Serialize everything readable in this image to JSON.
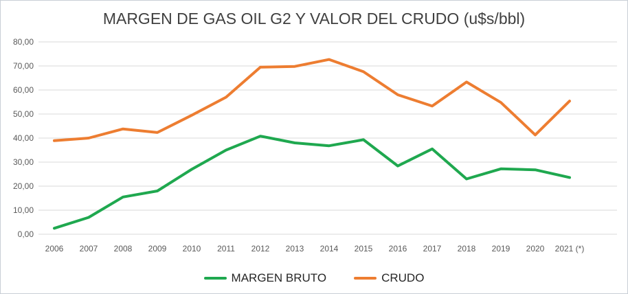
{
  "title": "MARGEN DE GAS OIL G2 Y VALOR DEL CRUDO (u$s/bbl)",
  "colors": {
    "title_text": "#404040",
    "axis_text": "#595959",
    "gridline": "#d9d9d9",
    "frame_border": "#c9ced6",
    "background": "#ffffff",
    "margen_bruto_green": "#1fa84f",
    "crudo_orange": "#ed7d31"
  },
  "legend": {
    "position": "bottom-center",
    "items": [
      {
        "label": "MARGEN BRUTO",
        "color": "#1fa84f"
      },
      {
        "label": "CRUDO",
        "color": "#ed7d31"
      }
    ]
  },
  "chart_data": {
    "type": "line",
    "title": "MARGEN DE GAS OIL G2 Y VALOR DEL CRUDO (u$s/bbl)",
    "xlabel": "",
    "ylabel": "",
    "grid": "horizontal",
    "legend_position": "bottom",
    "ylim": [
      0,
      80
    ],
    "yticks": [
      0,
      10,
      20,
      30,
      40,
      50,
      60,
      70,
      80
    ],
    "ytick_labels": [
      "0,00",
      "10,00",
      "20,00",
      "30,00",
      "40,00",
      "50,00",
      "60,00",
      "70,00",
      "80,00"
    ],
    "categories": [
      "2006",
      "2007",
      "2008",
      "2009",
      "2010",
      "2011",
      "2012",
      "2013",
      "2014",
      "2015",
      "2016",
      "2017",
      "2018",
      "2019",
      "2020",
      "2021 (*)"
    ],
    "series": [
      {
        "name": "MARGEN BRUTO",
        "color": "#1fa84f",
        "values": [
          2.5,
          7.0,
          15.5,
          18.0,
          27.0,
          35.0,
          40.8,
          38.0,
          36.8,
          39.3,
          28.4,
          35.5,
          23.0,
          27.2,
          26.8,
          23.6
        ]
      },
      {
        "name": "CRUDO",
        "color": "#ed7d31",
        "values": [
          38.9,
          40.0,
          43.8,
          42.3,
          49.5,
          57.0,
          69.5,
          69.8,
          72.7,
          67.6,
          58.0,
          53.3,
          63.3,
          54.8,
          41.3,
          55.4
        ]
      }
    ]
  }
}
